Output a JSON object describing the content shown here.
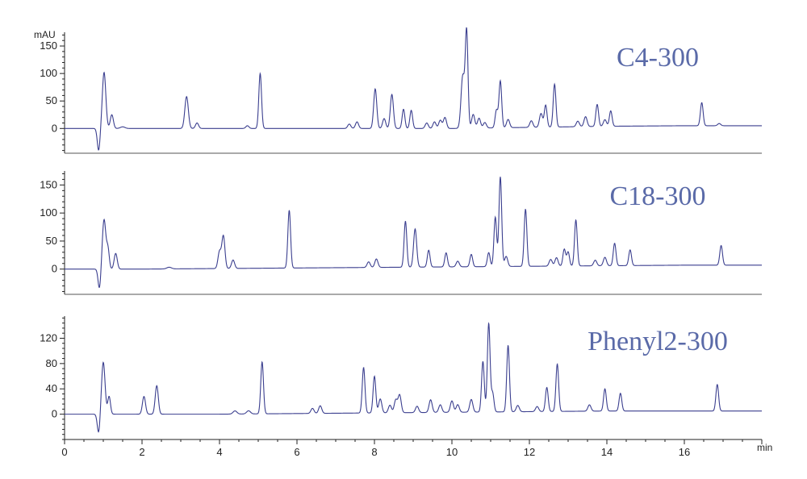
{
  "chart_data": {
    "type": "line",
    "y_unit": "mAU",
    "x_unit": "min",
    "x_ticks": [
      0,
      2,
      4,
      6,
      8,
      10,
      12,
      14,
      16
    ],
    "xlim": [
      0,
      18
    ],
    "line_color": "#3b3f8f",
    "title_color": "#5a6aa8",
    "panels": [
      {
        "title": "C4-300",
        "ylim": [
          -45,
          175
        ],
        "y_ticks": [
          0,
          50,
          100,
          150
        ],
        "baseline": [
          [
            0,
            0
          ],
          [
            2,
            0
          ],
          [
            4,
            0
          ],
          [
            6,
            0
          ],
          [
            8,
            0
          ],
          [
            10,
            0
          ],
          [
            12,
            2
          ],
          [
            14,
            4
          ],
          [
            16,
            5
          ],
          [
            18,
            5
          ]
        ],
        "peaks": [
          {
            "t": 0.88,
            "h": -40,
            "w": 0.035
          },
          {
            "t": 1.02,
            "h": 102,
            "w": 0.045
          },
          {
            "t": 1.22,
            "h": 25,
            "w": 0.04
          },
          {
            "t": 1.5,
            "h": 3,
            "w": 0.06
          },
          {
            "t": 3.15,
            "h": 58,
            "w": 0.045
          },
          {
            "t": 3.42,
            "h": 10,
            "w": 0.04
          },
          {
            "t": 4.72,
            "h": 5,
            "w": 0.04
          },
          {
            "t": 5.05,
            "h": 100,
            "w": 0.035
          },
          {
            "t": 7.35,
            "h": 8,
            "w": 0.04
          },
          {
            "t": 7.55,
            "h": 12,
            "w": 0.04
          },
          {
            "t": 8.02,
            "h": 72,
            "w": 0.04
          },
          {
            "t": 8.25,
            "h": 18,
            "w": 0.04
          },
          {
            "t": 8.45,
            "h": 62,
            "w": 0.04
          },
          {
            "t": 8.75,
            "h": 35,
            "w": 0.035
          },
          {
            "t": 8.95,
            "h": 33,
            "w": 0.035
          },
          {
            "t": 9.35,
            "h": 10,
            "w": 0.04
          },
          {
            "t": 9.55,
            "h": 12,
            "w": 0.04
          },
          {
            "t": 9.7,
            "h": 15,
            "w": 0.04
          },
          {
            "t": 9.82,
            "h": 20,
            "w": 0.04
          },
          {
            "t": 10.28,
            "h": 95,
            "w": 0.045
          },
          {
            "t": 10.38,
            "h": 175,
            "w": 0.035
          },
          {
            "t": 10.55,
            "h": 25,
            "w": 0.04
          },
          {
            "t": 10.7,
            "h": 18,
            "w": 0.04
          },
          {
            "t": 10.85,
            "h": 10,
            "w": 0.04
          },
          {
            "t": 11.15,
            "h": 32,
            "w": 0.035
          },
          {
            "t": 11.25,
            "h": 85,
            "w": 0.035
          },
          {
            "t": 11.45,
            "h": 15,
            "w": 0.04
          },
          {
            "t": 12.05,
            "h": 12,
            "w": 0.04
          },
          {
            "t": 12.3,
            "h": 25,
            "w": 0.04
          },
          {
            "t": 12.42,
            "h": 40,
            "w": 0.035
          },
          {
            "t": 12.65,
            "h": 78,
            "w": 0.035
          },
          {
            "t": 13.25,
            "h": 10,
            "w": 0.04
          },
          {
            "t": 13.45,
            "h": 18,
            "w": 0.04
          },
          {
            "t": 13.75,
            "h": 40,
            "w": 0.035
          },
          {
            "t": 13.95,
            "h": 12,
            "w": 0.04
          },
          {
            "t": 14.1,
            "h": 28,
            "w": 0.035
          },
          {
            "t": 16.45,
            "h": 42,
            "w": 0.035
          },
          {
            "t": 16.9,
            "h": 4,
            "w": 0.04
          }
        ]
      },
      {
        "title": "C18-300",
        "ylim": [
          -45,
          175
        ],
        "y_ticks": [
          0,
          50,
          100,
          150
        ],
        "baseline": [
          [
            0,
            0
          ],
          [
            2,
            0
          ],
          [
            4,
            1
          ],
          [
            6,
            2
          ],
          [
            8,
            3
          ],
          [
            10,
            4
          ],
          [
            12,
            5
          ],
          [
            14,
            6
          ],
          [
            16,
            7
          ],
          [
            18,
            7
          ]
        ],
        "peaks": [
          {
            "t": 0.9,
            "h": -35,
            "w": 0.035
          },
          {
            "t": 1.02,
            "h": 88,
            "w": 0.045
          },
          {
            "t": 1.12,
            "h": 35,
            "w": 0.035
          },
          {
            "t": 1.32,
            "h": 28,
            "w": 0.04
          },
          {
            "t": 2.7,
            "h": 3,
            "w": 0.06
          },
          {
            "t": 4.0,
            "h": 30,
            "w": 0.04
          },
          {
            "t": 4.1,
            "h": 58,
            "w": 0.04
          },
          {
            "t": 4.35,
            "h": 15,
            "w": 0.04
          },
          {
            "t": 5.8,
            "h": 103,
            "w": 0.035
          },
          {
            "t": 7.85,
            "h": 10,
            "w": 0.04
          },
          {
            "t": 8.05,
            "h": 15,
            "w": 0.04
          },
          {
            "t": 8.8,
            "h": 82,
            "w": 0.035
          },
          {
            "t": 9.05,
            "h": 68,
            "w": 0.04
          },
          {
            "t": 9.4,
            "h": 30,
            "w": 0.035
          },
          {
            "t": 9.85,
            "h": 25,
            "w": 0.035
          },
          {
            "t": 10.15,
            "h": 10,
            "w": 0.04
          },
          {
            "t": 10.5,
            "h": 22,
            "w": 0.035
          },
          {
            "t": 10.95,
            "h": 25,
            "w": 0.035
          },
          {
            "t": 11.12,
            "h": 88,
            "w": 0.035
          },
          {
            "t": 11.25,
            "h": 160,
            "w": 0.035
          },
          {
            "t": 11.4,
            "h": 18,
            "w": 0.04
          },
          {
            "t": 11.9,
            "h": 102,
            "w": 0.035
          },
          {
            "t": 12.55,
            "h": 12,
            "w": 0.04
          },
          {
            "t": 12.7,
            "h": 15,
            "w": 0.04
          },
          {
            "t": 12.9,
            "h": 30,
            "w": 0.035
          },
          {
            "t": 13.0,
            "h": 25,
            "w": 0.035
          },
          {
            "t": 13.2,
            "h": 82,
            "w": 0.035
          },
          {
            "t": 13.7,
            "h": 10,
            "w": 0.04
          },
          {
            "t": 13.95,
            "h": 15,
            "w": 0.04
          },
          {
            "t": 14.2,
            "h": 40,
            "w": 0.035
          },
          {
            "t": 14.6,
            "h": 28,
            "w": 0.035
          },
          {
            "t": 16.95,
            "h": 35,
            "w": 0.035
          }
        ]
      },
      {
        "title": "Phenyl2-300",
        "ylim": [
          -40,
          155
        ],
        "y_ticks": [
          0,
          40,
          80,
          120
        ],
        "baseline": [
          [
            0,
            0
          ],
          [
            2,
            0
          ],
          [
            4,
            0
          ],
          [
            6,
            1
          ],
          [
            8,
            2
          ],
          [
            10,
            3
          ],
          [
            12,
            4
          ],
          [
            14,
            5
          ],
          [
            16,
            5
          ],
          [
            18,
            5
          ]
        ],
        "peaks": [
          {
            "t": 0.88,
            "h": -30,
            "w": 0.035
          },
          {
            "t": 1.0,
            "h": 82,
            "w": 0.045
          },
          {
            "t": 1.15,
            "h": 28,
            "w": 0.035
          },
          {
            "t": 2.05,
            "h": 28,
            "w": 0.04
          },
          {
            "t": 2.38,
            "h": 45,
            "w": 0.04
          },
          {
            "t": 4.4,
            "h": 5,
            "w": 0.05
          },
          {
            "t": 4.75,
            "h": 5,
            "w": 0.05
          },
          {
            "t": 5.1,
            "h": 82,
            "w": 0.035
          },
          {
            "t": 6.4,
            "h": 8,
            "w": 0.04
          },
          {
            "t": 6.6,
            "h": 12,
            "w": 0.04
          },
          {
            "t": 7.72,
            "h": 72,
            "w": 0.035
          },
          {
            "t": 8.0,
            "h": 58,
            "w": 0.035
          },
          {
            "t": 8.15,
            "h": 22,
            "w": 0.04
          },
          {
            "t": 8.4,
            "h": 12,
            "w": 0.04
          },
          {
            "t": 8.55,
            "h": 20,
            "w": 0.04
          },
          {
            "t": 8.65,
            "h": 28,
            "w": 0.04
          },
          {
            "t": 9.1,
            "h": 10,
            "w": 0.04
          },
          {
            "t": 9.45,
            "h": 20,
            "w": 0.04
          },
          {
            "t": 9.7,
            "h": 12,
            "w": 0.04
          },
          {
            "t": 10.0,
            "h": 18,
            "w": 0.04
          },
          {
            "t": 10.15,
            "h": 12,
            "w": 0.04
          },
          {
            "t": 10.5,
            "h": 20,
            "w": 0.04
          },
          {
            "t": 10.8,
            "h": 80,
            "w": 0.035
          },
          {
            "t": 10.95,
            "h": 140,
            "w": 0.035
          },
          {
            "t": 11.05,
            "h": 30,
            "w": 0.035
          },
          {
            "t": 11.45,
            "h": 105,
            "w": 0.035
          },
          {
            "t": 11.7,
            "h": 10,
            "w": 0.04
          },
          {
            "t": 12.2,
            "h": 8,
            "w": 0.04
          },
          {
            "t": 12.45,
            "h": 38,
            "w": 0.035
          },
          {
            "t": 12.72,
            "h": 75,
            "w": 0.035
          },
          {
            "t": 13.55,
            "h": 10,
            "w": 0.04
          },
          {
            "t": 13.95,
            "h": 35,
            "w": 0.035
          },
          {
            "t": 14.35,
            "h": 28,
            "w": 0.035
          },
          {
            "t": 16.85,
            "h": 42,
            "w": 0.035
          }
        ]
      }
    ]
  }
}
